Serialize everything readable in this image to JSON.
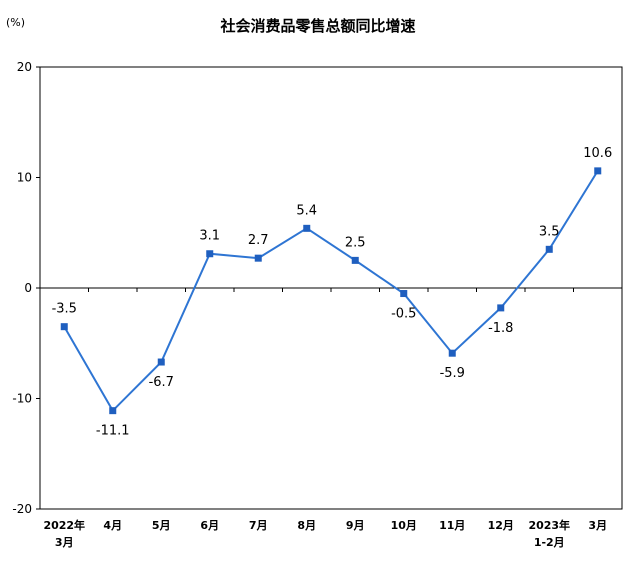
{
  "chart_data": {
    "type": "line",
    "title": "社会消费品零售总额同比增速",
    "unit": "(%)",
    "ylim": [
      -20,
      20
    ],
    "yticks": [
      "20",
      "10",
      "0",
      "-10",
      "-20"
    ],
    "categories": [
      [
        "2022年",
        "3月"
      ],
      [
        "4月"
      ],
      [
        "5月"
      ],
      [
        "6月"
      ],
      [
        "7月"
      ],
      [
        "8月"
      ],
      [
        "9月"
      ],
      [
        "10月"
      ],
      [
        "11月"
      ],
      [
        "12月"
      ],
      [
        "2023年",
        "1-2月"
      ],
      [
        "3月"
      ]
    ],
    "values": [
      -3.5,
      -11.1,
      -6.7,
      3.1,
      2.7,
      5.4,
      2.5,
      -0.5,
      -5.9,
      -1.8,
      3.5,
      10.6
    ],
    "data_labels": [
      "-3.5",
      "-11.1",
      "-6.7",
      "3.1",
      "2.7",
      "5.4",
      "2.5",
      "-0.5",
      "-5.9",
      "-1.8",
      "3.5",
      "10.6"
    ],
    "line_color": "#2e75d3",
    "marker_color": "#1f5fbf",
    "grid": false
  }
}
